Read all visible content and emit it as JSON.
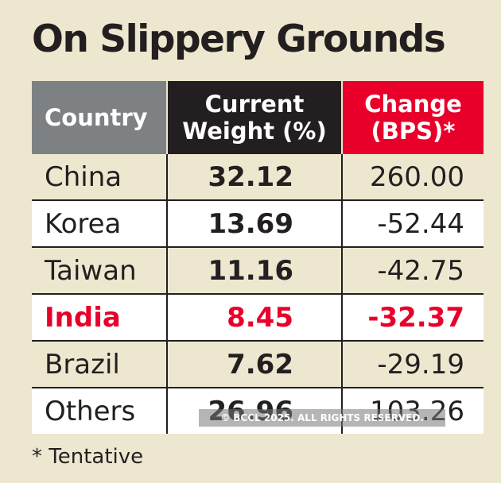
{
  "title": "On Slippery Grounds",
  "footnote": "* Tentative",
  "watermark": "© BCCL 2025. ALL RIGHTS RESERVED.",
  "colors": {
    "highlight": "#e8002a",
    "header_grey": "#7d8184",
    "header_dark": "#231f20",
    "background": "#ede7cf"
  },
  "chart_data": {
    "type": "table",
    "title": "On Slippery Grounds",
    "columns": [
      "Country",
      "Current Weight (%)",
      "Change (BPS)*"
    ],
    "rows": [
      {
        "country": "China",
        "weight": "32.12",
        "change": "260.00"
      },
      {
        "country": "Korea",
        "weight": "13.69",
        "change": "-52.44"
      },
      {
        "country": "Taiwan",
        "weight": "11.16",
        "change": "-42.75"
      },
      {
        "country": "India",
        "weight": "8.45",
        "change": "-32.37",
        "highlighted": true
      },
      {
        "country": "Brazil",
        "weight": "7.62",
        "change": "-29.19"
      },
      {
        "country": "Others",
        "weight": "26.96",
        "change": "103.26"
      }
    ]
  }
}
